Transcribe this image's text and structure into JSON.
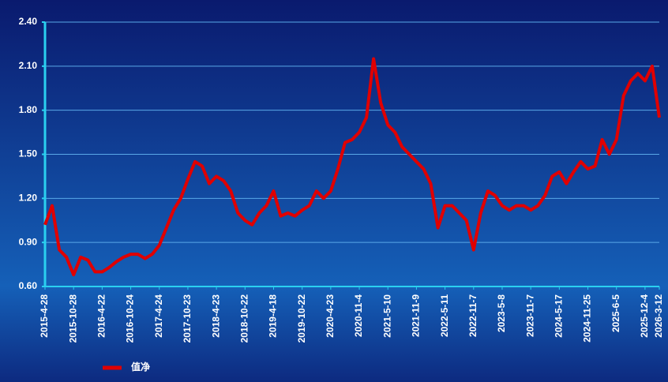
{
  "chart_data": {
    "type": "line",
    "categories": [
      "2015-4-28",
      null,
      null,
      null,
      "2015-10-28",
      null,
      null,
      null,
      "2016-4-22",
      null,
      null,
      null,
      "2016-10-24",
      null,
      null,
      null,
      "2017-4-24",
      null,
      null,
      null,
      "2017-10-23",
      null,
      null,
      null,
      "2018-4-23",
      null,
      null,
      null,
      "2018-10-22",
      null,
      null,
      null,
      "2019-4-18",
      null,
      null,
      null,
      "2019-10-22",
      null,
      null,
      null,
      "2020-4-23",
      null,
      null,
      null,
      "2020-11-4",
      null,
      null,
      null,
      "2021-5-10",
      null,
      null,
      null,
      "2021-11-9",
      null,
      null,
      null,
      "2022-5-11",
      null,
      null,
      null,
      "2022-11-7",
      null,
      null,
      null,
      "2023-5-8",
      null,
      null,
      null,
      "2023-11-7",
      null,
      null,
      null,
      "2024-5-17",
      null,
      null,
      null,
      "2024-11-25",
      null,
      null,
      null,
      "2025-6-5",
      null,
      null,
      null,
      "2025-12-4",
      null,
      "2026-3-12"
    ],
    "series": [
      {
        "name": "值净",
        "color": "#e00000",
        "values": [
          1.02,
          1.15,
          0.85,
          0.8,
          0.68,
          0.8,
          0.78,
          0.7,
          0.7,
          0.73,
          0.77,
          0.8,
          0.82,
          0.82,
          0.79,
          0.82,
          0.88,
          1.0,
          1.12,
          1.2,
          1.33,
          1.45,
          1.42,
          1.3,
          1.35,
          1.32,
          1.25,
          1.1,
          1.05,
          1.02,
          1.1,
          1.15,
          1.25,
          1.08,
          1.1,
          1.08,
          1.12,
          1.15,
          1.25,
          1.2,
          1.25,
          1.4,
          1.58,
          1.6,
          1.65,
          1.75,
          2.15,
          1.85,
          1.7,
          1.65,
          1.55,
          1.5,
          1.45,
          1.4,
          1.3,
          1.0,
          1.15,
          1.15,
          1.1,
          1.05,
          0.85,
          1.1,
          1.25,
          1.22,
          1.15,
          1.12,
          1.15,
          1.15,
          1.12,
          1.15,
          1.22,
          1.35,
          1.38,
          1.3,
          1.38,
          1.45,
          1.4,
          1.42,
          1.6,
          1.5,
          1.6,
          1.9,
          2.0,
          2.05,
          2.0,
          2.1,
          1.75
        ]
      }
    ],
    "ylim": [
      0.6,
      2.4
    ],
    "yticks": [
      {
        "value": 0.6,
        "label": "0.60"
      },
      {
        "value": 0.9,
        "label": "0.90"
      },
      {
        "value": 1.2,
        "label": "1.20"
      },
      {
        "value": 1.5,
        "label": "1.50"
      },
      {
        "value": 1.8,
        "label": "1.80"
      },
      {
        "value": 2.1,
        "label": "2.10"
      },
      {
        "value": 2.4,
        "label": "2.40"
      }
    ],
    "grid": true,
    "legend": "bottom-left"
  }
}
